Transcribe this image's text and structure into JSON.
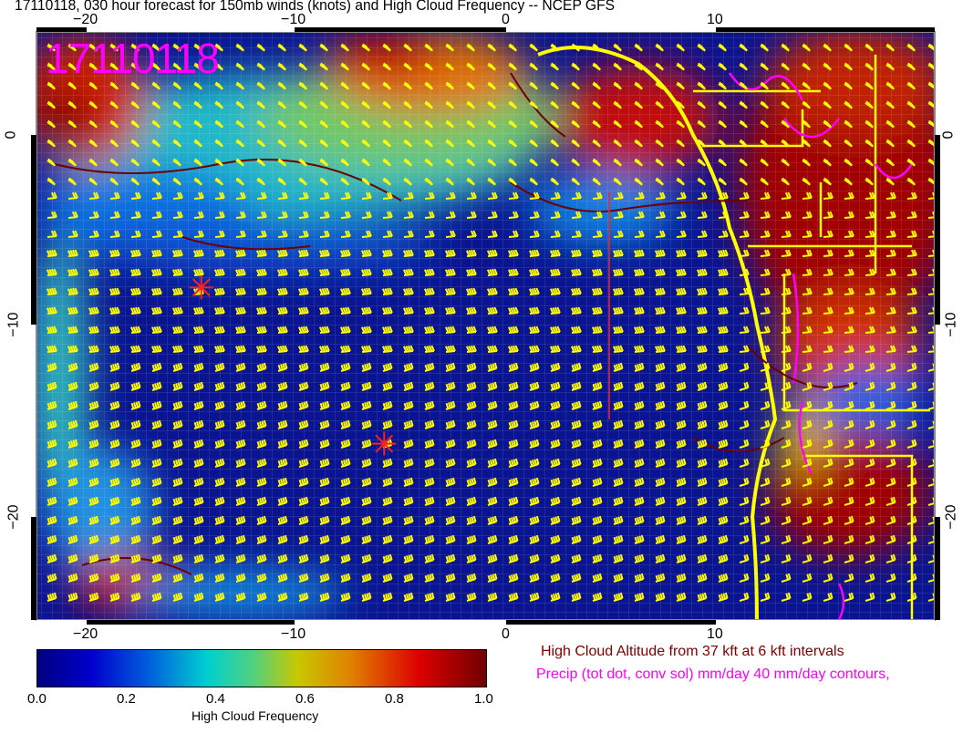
{
  "title": "17110118, 030 hour forecast for 150mb winds (knots) and High Cloud Frequency -- NCEP GFS",
  "stamp": "17110118",
  "lon_ticks": [
    "−20",
    "−10",
    "0",
    "10"
  ],
  "lat_ticks": [
    "0",
    "−10",
    "−20"
  ],
  "colorbar": {
    "label": "High Cloud Frequency",
    "ticks": [
      "0.0",
      "0.2",
      "0.4",
      "0.6",
      "0.8",
      "1.0"
    ]
  },
  "legend": {
    "cloud_altitude": "High Cloud Altitude from 37 kft at 6 kft intervals",
    "precip": "Precip (tot dot, conv sol) mm/day 40 mm/day contours,"
  },
  "colors": {
    "wind_barbs": "#ffff00",
    "coastline": "#ffff00",
    "precip": "#ff00ff",
    "cloud_altitude": "#7a0000",
    "markers": "#ff2020"
  },
  "markers": [
    {
      "lon": -14.5,
      "lat": -8
    },
    {
      "lon": -5.8,
      "lat": -16.2
    }
  ]
}
